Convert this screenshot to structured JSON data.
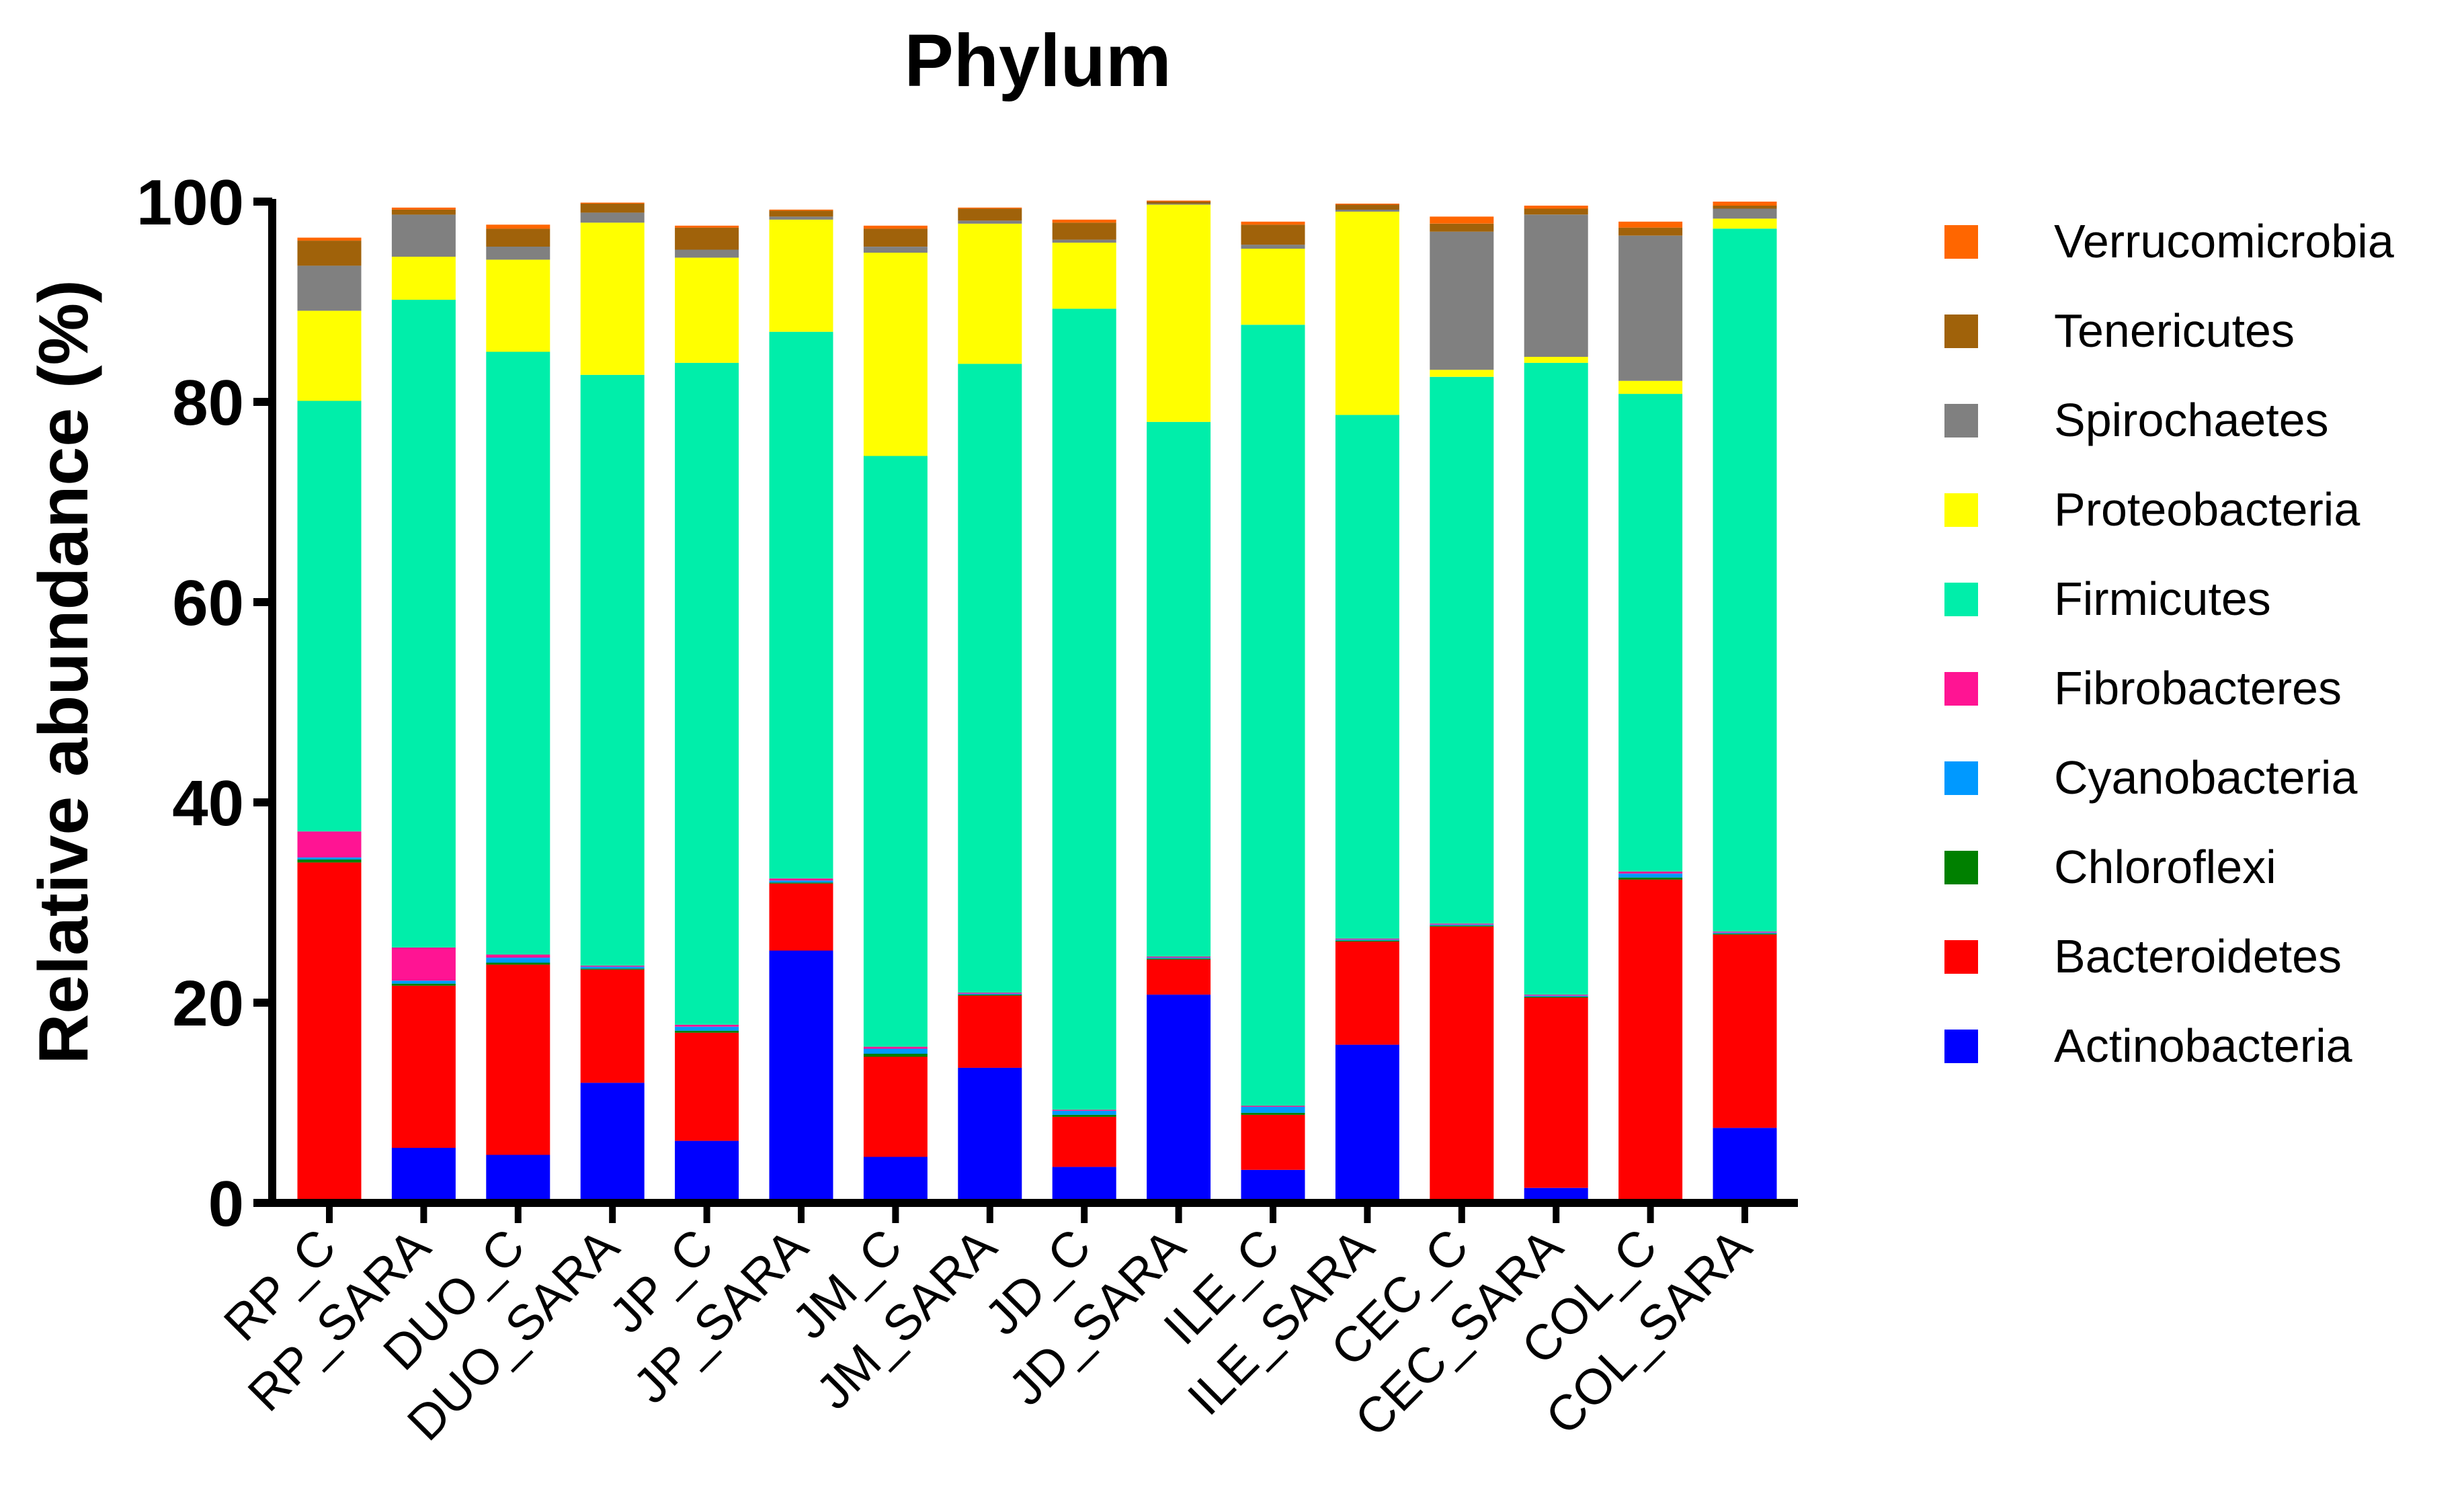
{
  "chart_data": {
    "type": "stacked-bar",
    "title": "Phylum",
    "xlabel": "",
    "ylabel": "Relative abundance (%)",
    "ylim": [
      0,
      100
    ],
    "yticks": [
      "0",
      "20",
      "40",
      "60",
      "80",
      "100"
    ],
    "ytick_values": [
      0,
      20,
      40,
      60,
      80,
      100
    ],
    "legend_position": "right",
    "categories": [
      "RP_C",
      "RP_SARA",
      "DUO_C",
      "DUO_SARA",
      "JP_C",
      "JP_SARA",
      "JM_C",
      "JM_SARA",
      "JD_C",
      "JD_SARA",
      "ILE_C",
      "ILE_SARA",
      "CEC_C",
      "CEC_SARA",
      "COL_C",
      "COL_SARA"
    ],
    "series": [
      {
        "name": "Actinobacteria",
        "color": "#0000FF",
        "values": [
          0,
          5.5,
          4.8,
          12,
          6.2,
          25.2,
          4.6,
          13.5,
          3.6,
          20.8,
          3.3,
          15.8,
          0,
          1.5,
          0,
          7.5
        ]
      },
      {
        "name": "Bacteroidetes",
        "color": "#FF0000",
        "values": [
          34,
          16.2,
          19,
          11.3,
          10.8,
          6.7,
          10,
          7.2,
          5,
          3.5,
          5.5,
          10.3,
          27.6,
          19,
          32.3,
          19.3
        ]
      },
      {
        "name": "Chloroflexi",
        "color": "#008000",
        "values": [
          0.3,
          0.2,
          0.2,
          0.1,
          0.2,
          0.1,
          0.3,
          0.1,
          0.2,
          0.1,
          0.2,
          0.1,
          0.1,
          0.1,
          0.2,
          0.1
        ]
      },
      {
        "name": "Cyanobacteria",
        "color": "#0099FF",
        "values": [
          0.2,
          0.3,
          0.5,
          0.2,
          0.4,
          0.2,
          0.5,
          0.1,
          0.4,
          0.1,
          0.6,
          0.1,
          0.1,
          0.1,
          0.4,
          0.1
        ]
      },
      {
        "name": "Fibrobacteres",
        "color": "#FF1493",
        "values": [
          2.6,
          3.3,
          0.3,
          0.1,
          0.2,
          0.2,
          0.2,
          0.1,
          0.1,
          0.1,
          0.1,
          0.1,
          0.1,
          0.1,
          0.2,
          0.1
        ]
      },
      {
        "name": "Firmicutes",
        "color": "#00EEAA",
        "values": [
          43,
          64.7,
          60.2,
          59,
          66.1,
          54.6,
          59,
          62.8,
          80,
          53.4,
          78,
          52.3,
          54.6,
          63.1,
          47.7,
          70.2
        ]
      },
      {
        "name": "Proteobacteria",
        "color": "#FFFF00",
        "values": [
          9,
          4.3,
          9.2,
          15.2,
          10.5,
          11.2,
          20.3,
          14,
          6.6,
          21.7,
          7.6,
          20.3,
          0.7,
          0.6,
          1.3,
          1
        ]
      },
      {
        "name": "Spirochaetes",
        "color": "#808080",
        "values": [
          4.5,
          4.2,
          1.3,
          1,
          0.8,
          0.3,
          0.6,
          0.3,
          0.3,
          0.1,
          0.4,
          0.2,
          13.8,
          14.2,
          14.5,
          1
        ]
      },
      {
        "name": "Tenericutes",
        "color": "#A0620A",
        "values": [
          2.5,
          0.5,
          1.8,
          0.9,
          2.2,
          0.6,
          1.8,
          1.2,
          1.7,
          0.2,
          2,
          0.5,
          0.8,
          0.6,
          0.8,
          0.3
        ]
      },
      {
        "name": "Verrucomicrobia",
        "color": "#FF6600",
        "values": [
          0.3,
          0.2,
          0.4,
          0.1,
          0.2,
          0.1,
          0.3,
          0.1,
          0.3,
          0.1,
          0.3,
          0.1,
          0.7,
          0.3,
          0.6,
          0.4
        ]
      }
    ],
    "legend_order": [
      "Verrucomicrobia",
      "Tenericutes",
      "Spirochaetes",
      "Proteobacteria",
      "Firmicutes",
      "Fibrobacteres",
      "Cyanobacteria",
      "Chloroflexi",
      "Bacteroidetes",
      "Actinobacteria"
    ]
  }
}
